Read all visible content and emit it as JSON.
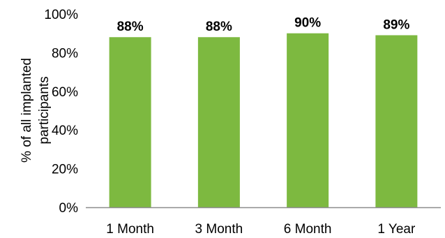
{
  "chart_data": {
    "type": "bar",
    "categories": [
      "1 Month",
      "3 Month",
      "6 Month",
      "1 Year"
    ],
    "values": [
      88,
      88,
      90,
      89
    ],
    "data_labels": [
      "88%",
      "88%",
      "90%",
      "89%"
    ],
    "ylabel_lines": [
      "% of all implanted",
      "participants"
    ],
    "ylim": [
      0,
      100
    ],
    "yticks": [
      {
        "value": 0,
        "label": "0%"
      },
      {
        "value": 20,
        "label": "20%"
      },
      {
        "value": 40,
        "label": "40%"
      },
      {
        "value": 60,
        "label": "60%"
      },
      {
        "value": 80,
        "label": "80%"
      },
      {
        "value": 100,
        "label": "100%"
      }
    ],
    "grid": false,
    "legend": "none",
    "bar_color": "#7DB940",
    "axis_color": "#8C8C8C"
  }
}
